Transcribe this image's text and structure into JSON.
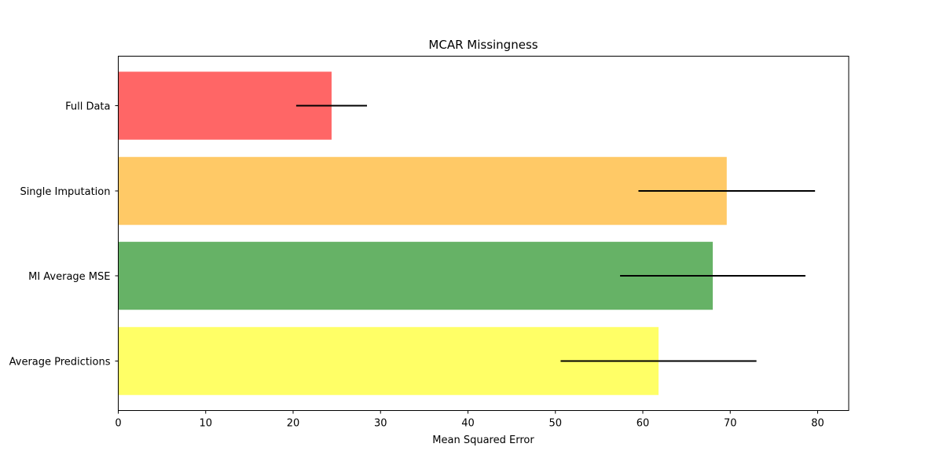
{
  "chart_data": {
    "type": "bar",
    "orientation": "horizontal",
    "title": "MCAR Missingness",
    "xlabel": "Mean Squared Error",
    "ylabel": "",
    "xlim": [
      0,
      83.6
    ],
    "xticks": [
      0,
      10,
      20,
      30,
      40,
      50,
      60,
      70,
      80
    ],
    "grid": false,
    "legend": null,
    "categories": [
      "Full Data",
      "Single Imputation",
      "MI Average MSE",
      "Average Predictions"
    ],
    "values": [
      24.4,
      69.6,
      68.0,
      61.8
    ],
    "errors": [
      4.05,
      10.1,
      10.6,
      11.2
    ],
    "colors": [
      "#ff6666",
      "#ffc966",
      "#66b266",
      "#ffff66"
    ]
  }
}
